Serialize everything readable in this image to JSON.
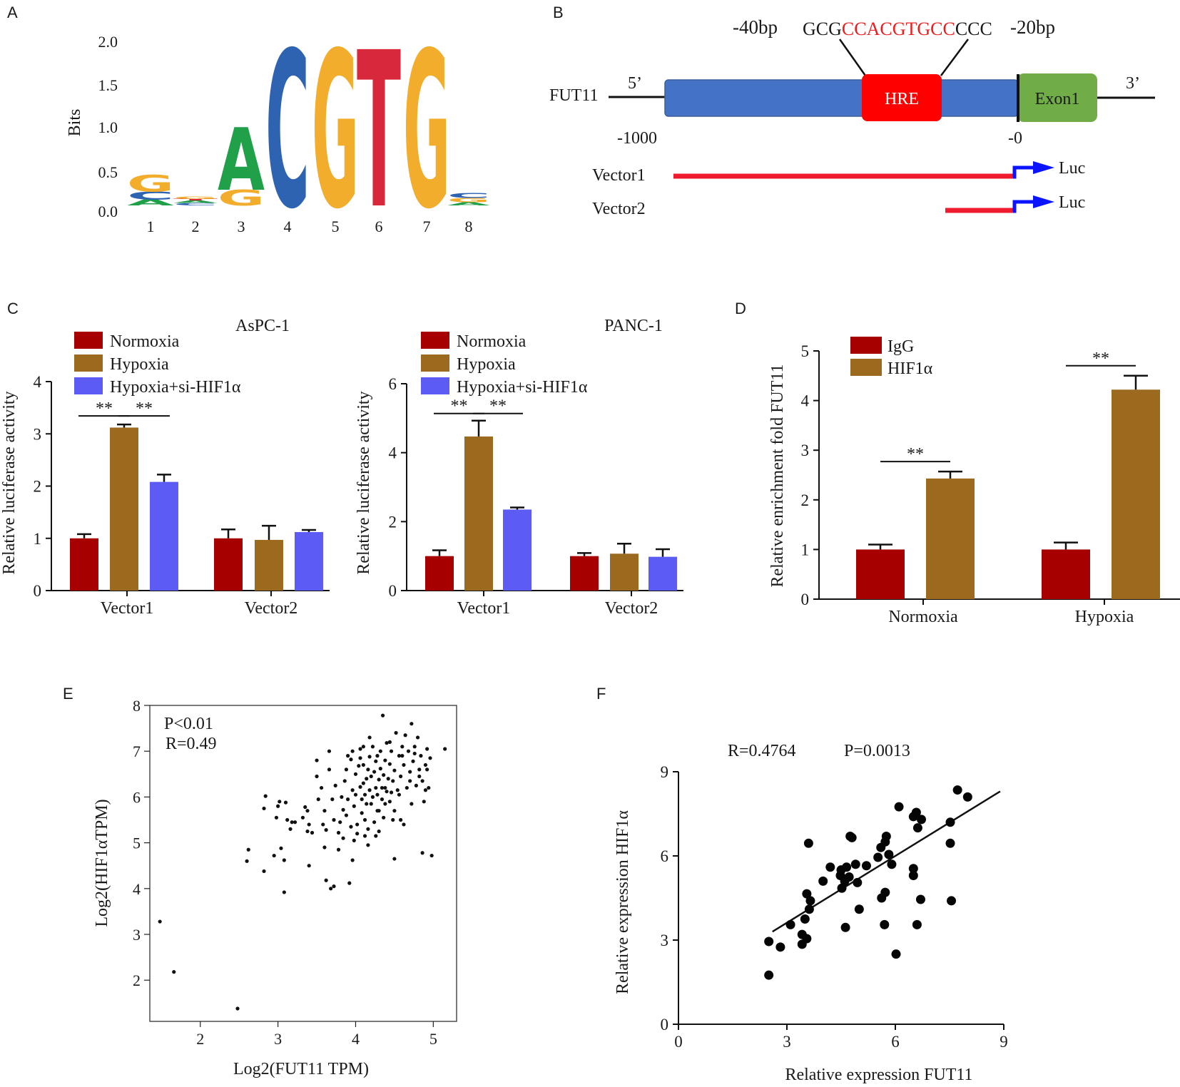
{
  "panels": [
    "A",
    "B",
    "C",
    "D",
    "E",
    "F"
  ],
  "colors": {
    "red": "#a60000",
    "brown": "#9b6a1f",
    "blue": "#5c5cf5",
    "motif_A": "#21a04a",
    "motif_C": "#2e63b2",
    "motif_G": "#f2ad2d",
    "motif_T": "#d7283c",
    "promoter": "#4472c4",
    "hre": "#ff0000",
    "exon": "#70ad47",
    "vector_line": "#ee1c2e",
    "arrow": "#0a14ff"
  },
  "chart_data": [
    {
      "id": "A",
      "type": "sequence-logo",
      "ylabel": "Bits",
      "yticks": [
        "0.0",
        "0.5",
        "1.0",
        "1.5",
        "2.0"
      ],
      "ylim": [
        0,
        2
      ],
      "positions": [
        "1",
        "2",
        "3",
        "4",
        "5",
        "6",
        "7",
        "8"
      ],
      "stacks": [
        [
          {
            "base": "A",
            "bits": 0.07
          },
          {
            "base": "C",
            "bits": 0.1
          },
          {
            "base": "G",
            "bits": 0.2
          }
        ],
        [
          {
            "base": "C",
            "bits": 0.03
          },
          {
            "base": "A",
            "bits": 0.03
          },
          {
            "base": "T",
            "bits": 0.02
          },
          {
            "base": "G",
            "bits": 0.03
          }
        ],
        [
          {
            "base": "G",
            "bits": 0.19
          },
          {
            "base": "A",
            "bits": 0.76
          }
        ],
        [
          {
            "base": "C",
            "bits": 1.9
          }
        ],
        [
          {
            "base": "G",
            "bits": 1.9
          }
        ],
        [
          {
            "base": "T",
            "bits": 1.9
          }
        ],
        [
          {
            "base": "G",
            "bits": 1.9
          }
        ],
        [
          {
            "base": "A",
            "bits": 0.04
          },
          {
            "base": "G",
            "bits": 0.05
          },
          {
            "base": "C",
            "bits": 0.06
          }
        ]
      ]
    },
    {
      "id": "B",
      "type": "diagram",
      "gene": "FUT11",
      "end5": "5’",
      "end3": "3’",
      "pos_left": "-40bp",
      "pos_right": "-20bp",
      "seq_flank_left": "GCG",
      "seq_core": "CCACGTGCC",
      "seq_flank_right": "CCC",
      "hre_label": "HRE",
      "exon_label": "Exon1",
      "coord_start": "-1000",
      "coord_end": "-0",
      "vectors": [
        {
          "name": "Vector1",
          "reporter": "Luc"
        },
        {
          "name": "Vector2",
          "reporter": "Luc"
        }
      ]
    },
    {
      "id": "C1",
      "type": "bar",
      "title": "AsPC-1",
      "ylabel": "Relative luciferase activity",
      "ylim": [
        0,
        4
      ],
      "yticks": [
        0,
        1,
        2,
        3,
        4
      ],
      "categories": [
        "Vector1",
        "Vector2"
      ],
      "series": [
        {
          "name": "Normoxia",
          "values": [
            1.0,
            1.0
          ],
          "errors": [
            0.08,
            0.17
          ]
        },
        {
          "name": "Hypoxia",
          "values": [
            3.12,
            0.97
          ],
          "errors": [
            0.06,
            0.27
          ]
        },
        {
          "name": "Hypoxia+si-HIF1α",
          "values": [
            2.08,
            1.12
          ],
          "errors": [
            0.14,
            0.04
          ]
        }
      ],
      "significance": [
        {
          "label": "**",
          "category": 0,
          "from": 0,
          "to": 1
        },
        {
          "label": "**",
          "category": 0,
          "from": 1,
          "to": 2
        }
      ]
    },
    {
      "id": "C2",
      "type": "bar",
      "title": "PANC-1",
      "ylabel": "Relative luciferase activity",
      "ylim": [
        0,
        6
      ],
      "yticks": [
        0,
        2,
        4,
        6
      ],
      "categories": [
        "Vector1",
        "Vector2"
      ],
      "series": [
        {
          "name": "Normoxia",
          "values": [
            1.0,
            1.0
          ],
          "errors": [
            0.17,
            0.09
          ]
        },
        {
          "name": "Hypoxia",
          "values": [
            4.47,
            1.07
          ],
          "errors": [
            0.46,
            0.29
          ]
        },
        {
          "name": "Hypoxia+si-HIF1α",
          "values": [
            2.35,
            0.98
          ],
          "errors": [
            0.06,
            0.22
          ]
        }
      ],
      "significance": [
        {
          "label": "**",
          "category": 0,
          "from": 0,
          "to": 1
        },
        {
          "label": "**",
          "category": 0,
          "from": 1,
          "to": 2
        }
      ]
    },
    {
      "id": "D",
      "type": "bar",
      "ylabel": "Relative enrichment fold FUT11",
      "ylim": [
        0,
        5
      ],
      "yticks": [
        0,
        1,
        2,
        3,
        4,
        5
      ],
      "categories": [
        "Normoxia",
        "Hypoxia"
      ],
      "series": [
        {
          "name": "IgG",
          "values": [
            1.0,
            1.0
          ],
          "errors": [
            0.1,
            0.14
          ]
        },
        {
          "name": "HIF1α",
          "values": [
            2.43,
            4.22
          ],
          "errors": [
            0.14,
            0.28
          ]
        }
      ],
      "significance": [
        {
          "label": "**",
          "category": 0,
          "from": 0,
          "to": 1
        },
        {
          "label": "**",
          "category": 1,
          "from": 0,
          "to": 1
        }
      ]
    },
    {
      "id": "E",
      "type": "scatter",
      "xlabel": "Log2(FUT11 TPM)",
      "ylabel": "Log2(HIF1αTPM)",
      "xlim": [
        1.35,
        5.3
      ],
      "ylim": [
        1.1,
        8.0
      ],
      "xticks": [
        2,
        3,
        4,
        5
      ],
      "yticks": [
        2,
        3,
        4,
        5,
        6,
        7,
        8
      ],
      "annotation": [
        "P<0.01",
        "R=0.49"
      ],
      "points": [
        [
          1.48,
          3.28
        ],
        [
          1.66,
          2.18
        ],
        [
          2.48,
          1.38
        ],
        [
          2.6,
          4.6
        ],
        [
          2.62,
          4.85
        ],
        [
          2.82,
          4.38
        ],
        [
          2.82,
          5.75
        ],
        [
          2.84,
          6.02
        ],
        [
          2.95,
          4.72
        ],
        [
          2.98,
          5.55
        ],
        [
          3.0,
          5.8
        ],
        [
          3.02,
          5.9
        ],
        [
          3.04,
          4.88
        ],
        [
          3.08,
          4.62
        ],
        [
          3.08,
          3.92
        ],
        [
          3.1,
          5.88
        ],
        [
          3.12,
          5.5
        ],
        [
          3.16,
          5.3
        ],
        [
          3.18,
          5.45
        ],
        [
          3.22,
          5.45
        ],
        [
          3.32,
          5.55
        ],
        [
          3.35,
          5.78
        ],
        [
          3.38,
          5.25
        ],
        [
          3.38,
          5.7
        ],
        [
          3.4,
          5.4
        ],
        [
          3.4,
          4.5
        ],
        [
          3.44,
          5.22
        ],
        [
          3.5,
          6.45
        ],
        [
          3.5,
          6.8
        ],
        [
          3.52,
          5.95
        ],
        [
          3.56,
          6.2
        ],
        [
          3.58,
          5.4
        ],
        [
          3.6,
          5.7
        ],
        [
          3.62,
          5.28
        ],
        [
          3.62,
          4.18
        ],
        [
          3.66,
          6.6
        ],
        [
          3.66,
          7.0
        ],
        [
          3.68,
          4.0
        ],
        [
          3.7,
          5.95
        ],
        [
          3.72,
          5.5
        ],
        [
          3.72,
          4.05
        ],
        [
          3.74,
          6.25
        ],
        [
          3.78,
          4.85
        ],
        [
          3.78,
          5.22
        ],
        [
          3.8,
          5.45
        ],
        [
          3.82,
          6.0
        ],
        [
          3.84,
          5.72
        ],
        [
          3.86,
          6.35
        ],
        [
          3.88,
          5.6
        ],
        [
          3.88,
          6.6
        ],
        [
          3.9,
          6.9
        ],
        [
          3.9,
          5.95
        ],
        [
          3.92,
          4.12
        ],
        [
          3.94,
          5.35
        ],
        [
          3.96,
          6.15
        ],
        [
          3.96,
          7.0
        ],
        [
          3.98,
          5.8
        ],
        [
          4.0,
          6.5
        ],
        [
          4.0,
          6.05
        ],
        [
          4.02,
          5.2
        ],
        [
          4.04,
          6.68
        ],
        [
          4.06,
          6.22
        ],
        [
          4.06,
          6.85
        ],
        [
          4.08,
          5.95
        ],
        [
          4.08,
          5.65
        ],
        [
          4.1,
          6.3
        ],
        [
          4.1,
          7.1
        ],
        [
          4.12,
          6.05
        ],
        [
          4.12,
          5.5
        ],
        [
          4.14,
          6.4
        ],
        [
          4.14,
          5.85
        ],
        [
          4.16,
          6.6
        ],
        [
          4.16,
          5.3
        ],
        [
          4.18,
          6.15
        ],
        [
          4.18,
          6.88
        ],
        [
          4.2,
          5.85
        ],
        [
          4.2,
          6.45
        ],
        [
          4.22,
          7.1
        ],
        [
          4.22,
          6.0
        ],
        [
          4.24,
          5.45
        ],
        [
          4.24,
          6.55
        ],
        [
          4.26,
          6.2
        ],
        [
          4.26,
          6.78
        ],
        [
          4.28,
          5.7
        ],
        [
          4.28,
          6.05
        ],
        [
          4.3,
          5.25
        ],
        [
          4.3,
          6.38
        ],
        [
          4.32,
          6.62
        ],
        [
          4.32,
          7.0
        ],
        [
          4.34,
          5.95
        ],
        [
          4.34,
          6.2
        ],
        [
          4.36,
          6.48
        ],
        [
          4.36,
          5.55
        ],
        [
          4.38,
          6.8
        ],
        [
          4.38,
          5.85
        ],
        [
          4.4,
          6.12
        ],
        [
          4.4,
          7.18
        ],
        [
          4.42,
          6.4
        ],
        [
          4.44,
          5.9
        ],
        [
          4.44,
          6.72
        ],
        [
          4.46,
          6.1
        ],
        [
          4.46,
          7.0
        ],
        [
          4.48,
          6.35
        ],
        [
          4.5,
          6.58
        ],
        [
          4.5,
          5.7
        ],
        [
          4.52,
          7.4
        ],
        [
          4.54,
          6.15
        ],
        [
          4.56,
          6.9
        ],
        [
          4.58,
          6.45
        ],
        [
          4.58,
          5.5
        ],
        [
          4.6,
          7.1
        ],
        [
          4.62,
          6.7
        ],
        [
          4.64,
          7.35
        ],
        [
          4.66,
          6.2
        ],
        [
          4.68,
          7.0
        ],
        [
          4.7,
          6.55
        ],
        [
          4.72,
          5.85
        ],
        [
          4.72,
          7.6
        ],
        [
          4.74,
          6.78
        ],
        [
          4.76,
          6.95
        ],
        [
          4.78,
          6.25
        ],
        [
          4.8,
          7.3
        ],
        [
          4.82,
          6.6
        ],
        [
          4.84,
          6.9
        ],
        [
          4.86,
          6.35
        ],
        [
          4.88,
          5.9
        ],
        [
          4.9,
          6.7
        ],
        [
          4.92,
          7.05
        ],
        [
          4.94,
          6.2
        ],
        [
          4.96,
          6.85
        ],
        [
          4.98,
          4.72
        ],
        [
          5.15,
          7.05
        ],
        [
          4.5,
          4.65
        ],
        [
          4.86,
          4.78
        ],
        [
          4.12,
          5.15
        ],
        [
          3.98,
          5.05
        ],
        [
          4.35,
          7.78
        ],
        [
          4.06,
          7.05
        ],
        [
          4.44,
          7.2
        ],
        [
          4.92,
          6.6
        ],
        [
          4.62,
          5.4
        ],
        [
          4.16,
          4.95
        ],
        [
          4.26,
          5.15
        ],
        [
          3.84,
          5.1
        ],
        [
          4.7,
          6.35
        ],
        [
          4.02,
          5.4
        ],
        [
          4.28,
          6.9
        ],
        [
          4.56,
          6.05
        ],
        [
          3.94,
          6.82
        ],
        [
          4.18,
          7.3
        ],
        [
          4.48,
          5.5
        ],
        [
          4.76,
          7.1
        ],
        [
          4.9,
          6.15
        ],
        [
          4.3,
          5.7
        ],
        [
          3.6,
          4.9
        ],
        [
          3.96,
          4.62
        ],
        [
          4.1,
          6.7
        ],
        [
          4.38,
          6.2
        ],
        [
          4.6,
          6.9
        ],
        [
          4.82,
          6.45
        ]
      ]
    },
    {
      "id": "F",
      "type": "scatter",
      "xlabel": "Relative expression FUT11",
      "ylabel": "Relative expression HIF1α",
      "xlim": [
        0,
        9
      ],
      "ylim": [
        0,
        9
      ],
      "xticks": [
        0,
        3,
        6,
        9
      ],
      "yticks": [
        0,
        3,
        6,
        9
      ],
      "annotation": [
        "R=0.4764",
        "P=0.0013"
      ],
      "fit": {
        "x1": 2.6,
        "y1": 3.3,
        "x2": 8.9,
        "y2": 8.3
      },
      "points": [
        [
          2.5,
          1.75
        ],
        [
          2.5,
          2.95
        ],
        [
          2.82,
          2.75
        ],
        [
          3.1,
          3.55
        ],
        [
          3.42,
          2.85
        ],
        [
          3.42,
          3.2
        ],
        [
          3.5,
          3.75
        ],
        [
          3.55,
          3.05
        ],
        [
          3.62,
          4.1
        ],
        [
          3.65,
          4.4
        ],
        [
          3.55,
          4.65
        ],
        [
          3.6,
          6.45
        ],
        [
          4.0,
          5.1
        ],
        [
          4.2,
          5.6
        ],
        [
          4.48,
          5.3
        ],
        [
          4.5,
          5.5
        ],
        [
          4.52,
          4.85
        ],
        [
          4.6,
          5.1
        ],
        [
          4.65,
          5.6
        ],
        [
          4.72,
          5.25
        ],
        [
          4.75,
          6.7
        ],
        [
          4.8,
          6.65
        ],
        [
          4.9,
          5.7
        ],
        [
          4.95,
          5.05
        ],
        [
          5.0,
          4.1
        ],
        [
          4.62,
          3.45
        ],
        [
          5.2,
          5.65
        ],
        [
          5.52,
          5.95
        ],
        [
          5.6,
          6.3
        ],
        [
          5.72,
          6.5
        ],
        [
          5.75,
          6.7
        ],
        [
          5.82,
          6.05
        ],
        [
          5.9,
          5.7
        ],
        [
          5.62,
          4.5
        ],
        [
          5.72,
          4.7
        ],
        [
          5.7,
          3.55
        ],
        [
          6.02,
          2.5
        ],
        [
          6.1,
          7.75
        ],
        [
          6.5,
          7.4
        ],
        [
          6.58,
          7.55
        ],
        [
          6.62,
          7.0
        ],
        [
          6.72,
          7.3
        ],
        [
          6.5,
          5.55
        ],
        [
          6.5,
          5.3
        ],
        [
          6.6,
          3.55
        ],
        [
          6.7,
          4.45
        ],
        [
          7.52,
          7.2
        ],
        [
          7.52,
          6.45
        ],
        [
          7.55,
          4.4
        ],
        [
          7.72,
          8.35
        ],
        [
          8.0,
          8.1
        ]
      ]
    }
  ]
}
